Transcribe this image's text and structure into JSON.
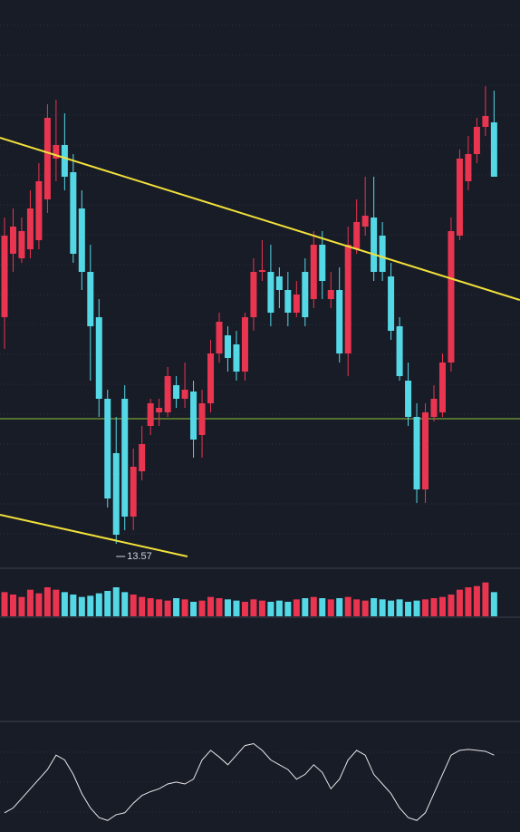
{
  "chart_data": [
    {
      "type": "candlestick",
      "open": [
        16.07,
        16.77,
        16.72,
        16.82,
        16.92,
        17.37,
        17.82,
        17.97,
        17.67,
        17.27,
        16.57,
        16.07,
        15.17,
        14.57,
        15.17,
        13.87,
        14.37,
        14.87,
        15.02,
        15.02,
        15.32,
        15.17,
        15.25,
        14.77,
        15.12,
        15.67,
        15.87,
        15.77,
        15.47,
        16.07,
        16.57,
        16.57,
        16.52,
        16.37,
        16.12,
        16.57,
        16.27,
        16.87,
        16.27,
        16.37,
        15.67,
        16.82,
        17.07,
        17.17,
        16.97,
        16.52,
        15.97,
        15.37,
        14.97,
        14.17,
        14.97,
        15.02,
        15.57,
        16.97,
        17.57,
        17.87,
        18.17,
        18.22
      ],
      "close": [
        16.97,
        17.07,
        17.02,
        17.27,
        17.57,
        18.27,
        17.97,
        17.62,
        16.77,
        16.57,
        15.97,
        15.17,
        14.07,
        13.67,
        13.87,
        14.42,
        14.67,
        15.12,
        15.07,
        15.42,
        15.17,
        15.27,
        14.72,
        15.12,
        15.67,
        16.02,
        15.62,
        15.47,
        16.07,
        16.57,
        16.59,
        16.12,
        16.37,
        16.12,
        16.32,
        16.07,
        16.87,
        16.47,
        16.37,
        15.67,
        16.87,
        17.12,
        17.19,
        16.57,
        16.57,
        15.92,
        15.42,
        14.97,
        14.17,
        15.02,
        15.17,
        15.57,
        17.02,
        17.82,
        17.87,
        18.17,
        18.29,
        17.62
      ],
      "high": [
        17.17,
        17.27,
        17.17,
        17.47,
        17.77,
        18.42,
        18.47,
        18.32,
        17.87,
        17.47,
        16.87,
        16.27,
        15.27,
        14.97,
        15.32,
        14.62,
        14.87,
        15.17,
        15.17,
        15.52,
        15.42,
        15.57,
        15.37,
        15.27,
        15.82,
        16.12,
        15.97,
        15.92,
        16.12,
        16.72,
        16.92,
        16.87,
        16.62,
        16.57,
        16.47,
        16.72,
        17.02,
        17.02,
        16.57,
        16.62,
        17.07,
        17.37,
        17.62,
        17.62,
        17.12,
        16.67,
        16.07,
        15.57,
        15.12,
        15.12,
        15.32,
        15.67,
        17.17,
        17.92,
        18.07,
        18.27,
        18.62,
        18.57
      ],
      "low": [
        15.72,
        16.57,
        16.67,
        16.72,
        16.82,
        17.22,
        17.57,
        17.47,
        16.67,
        16.37,
        15.37,
        14.97,
        13.97,
        13.57,
        13.72,
        13.72,
        14.27,
        14.77,
        14.87,
        14.97,
        15.07,
        15.07,
        14.52,
        14.52,
        15.02,
        15.57,
        15.47,
        15.37,
        15.37,
        15.92,
        16.47,
        15.97,
        16.17,
        15.97,
        16.07,
        15.97,
        16.17,
        16.27,
        16.17,
        15.57,
        15.42,
        16.77,
        16.97,
        16.47,
        16.47,
        15.82,
        15.37,
        14.87,
        14.02,
        14.02,
        14.92,
        14.97,
        15.47,
        16.92,
        17.47,
        17.77,
        18.07,
        17.62
      ],
      "up_color": "#ea3550",
      "down_color": "#55d8e6",
      "ylim": [
        13.32,
        19.57
      ],
      "annotation": {
        "text": "13.57",
        "index": 13
      },
      "trendlines": [
        {
          "color": "#f2e13a",
          "x": [
            -0.53,
            60
          ],
          "values": [
            18.05,
            16.26
          ]
        },
        {
          "color": "#f2e13a",
          "x": [
            -0.53,
            21.3
          ],
          "values": [
            13.89,
            13.43
          ]
        }
      ],
      "hline": {
        "value": 14.95,
        "color": "#8fc23a"
      }
    },
    {
      "type": "bar",
      "values": [
        20,
        18,
        16,
        22,
        19,
        24,
        22,
        20,
        18,
        16,
        17,
        19,
        21,
        24,
        20,
        18,
        16,
        15,
        14,
        13,
        15,
        14,
        12,
        13,
        16,
        15,
        14,
        13,
        12,
        14,
        13,
        12,
        13,
        12,
        14,
        15,
        16,
        15,
        14,
        15,
        16,
        14,
        13,
        15,
        14,
        13,
        14,
        12,
        13,
        14,
        15,
        16,
        18,
        22,
        24,
        25,
        28,
        20
      ],
      "ylim": [
        0,
        30
      ]
    },
    {
      "type": "line",
      "values": [
        20,
        25,
        35,
        45,
        55,
        65,
        80,
        75,
        60,
        40,
        25,
        15,
        12,
        18,
        20,
        30,
        38,
        42,
        45,
        50,
        52,
        50,
        55,
        75,
        85,
        78,
        70,
        80,
        90,
        92,
        85,
        75,
        70,
        65,
        55,
        60,
        70,
        62,
        45,
        55,
        75,
        85,
        80,
        60,
        50,
        40,
        25,
        15,
        12,
        20,
        40,
        60,
        80,
        85,
        86,
        85,
        84,
        80
      ],
      "color": "#e8e8e8",
      "ylim": [
        0,
        100
      ]
    }
  ]
}
